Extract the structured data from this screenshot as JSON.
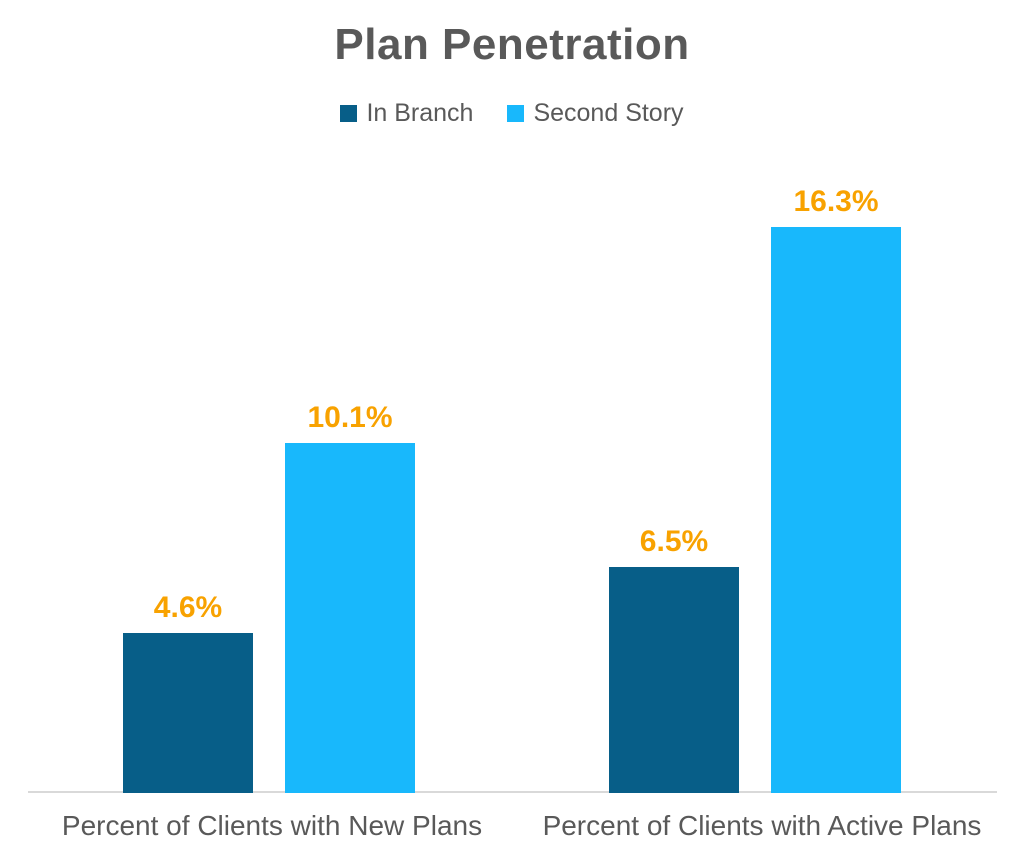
{
  "chart_data": {
    "type": "bar",
    "title": "Plan Penetration",
    "categories": [
      "Percent of Clients with New Plans",
      "Percent of Clients with Active Plans"
    ],
    "series": [
      {
        "name": "In Branch",
        "color": "#075E88",
        "values": [
          4.6,
          6.5
        ],
        "labels": [
          "4.6%",
          "6.5%"
        ]
      },
      {
        "name": "Second Story",
        "color": "#18B8FC",
        "values": [
          10.1,
          16.3
        ],
        "labels": [
          "10.1%",
          "16.3%"
        ]
      }
    ],
    "data_label_color": "#F8A200",
    "text_color": "#595959",
    "axis_line_color": "#D9D9D9",
    "background": "#FFFFFF",
    "xlabel": "",
    "ylabel": "",
    "ylim": [
      0,
      17
    ],
    "grid": false,
    "legend_position": "top",
    "data_labels_visible": true,
    "y_axis_visible": false
  }
}
